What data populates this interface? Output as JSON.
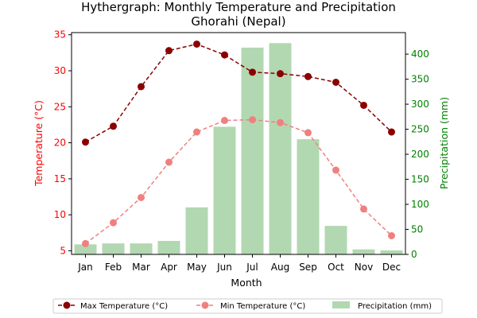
{
  "chart_data": {
    "type": "bar",
    "title_line1": "Hythergraph: Monthly Temperature and Precipitation",
    "title_line2": "Ghorahi (Nepal)",
    "xlabel": "Month",
    "ylabel_left": "Temperature (°C)",
    "ylabel_right": "Precipitation (mm)",
    "categories": [
      "Jan",
      "Feb",
      "Mar",
      "Apr",
      "May",
      "Jun",
      "Jul",
      "Aug",
      "Sep",
      "Oct",
      "Nov",
      "Dec"
    ],
    "ylim_left": [
      4.5,
      35.3
    ],
    "yticks_left": [
      5,
      10,
      15,
      20,
      25,
      30,
      35
    ],
    "ylim_right": [
      0,
      443
    ],
    "yticks_right": [
      0,
      50,
      100,
      150,
      200,
      250,
      300,
      350,
      400
    ],
    "series": [
      {
        "name": "Max Temperature (°C)",
        "kind": "line",
        "axis": "left",
        "color": "#8b0000",
        "values": [
          20.1,
          22.3,
          27.8,
          32.8,
          33.7,
          32.2,
          29.8,
          29.6,
          29.2,
          28.4,
          25.2,
          21.5
        ]
      },
      {
        "name": "Min Temperature (°C)",
        "kind": "line",
        "axis": "left",
        "color": "#f08080",
        "values": [
          6.0,
          8.9,
          12.4,
          17.3,
          21.5,
          23.1,
          23.2,
          22.8,
          21.4,
          16.2,
          10.8,
          7.1
        ]
      },
      {
        "name": "Precipitation (mm)",
        "kind": "bar",
        "axis": "right",
        "color": "#b2d8b2",
        "values": [
          20,
          22,
          22,
          27,
          94,
          255,
          413,
          422,
          230,
          57,
          10,
          8
        ]
      }
    ],
    "legend_position": "bottom-center",
    "left_axis_color": "#ff0000",
    "right_axis_color": "#008000"
  }
}
